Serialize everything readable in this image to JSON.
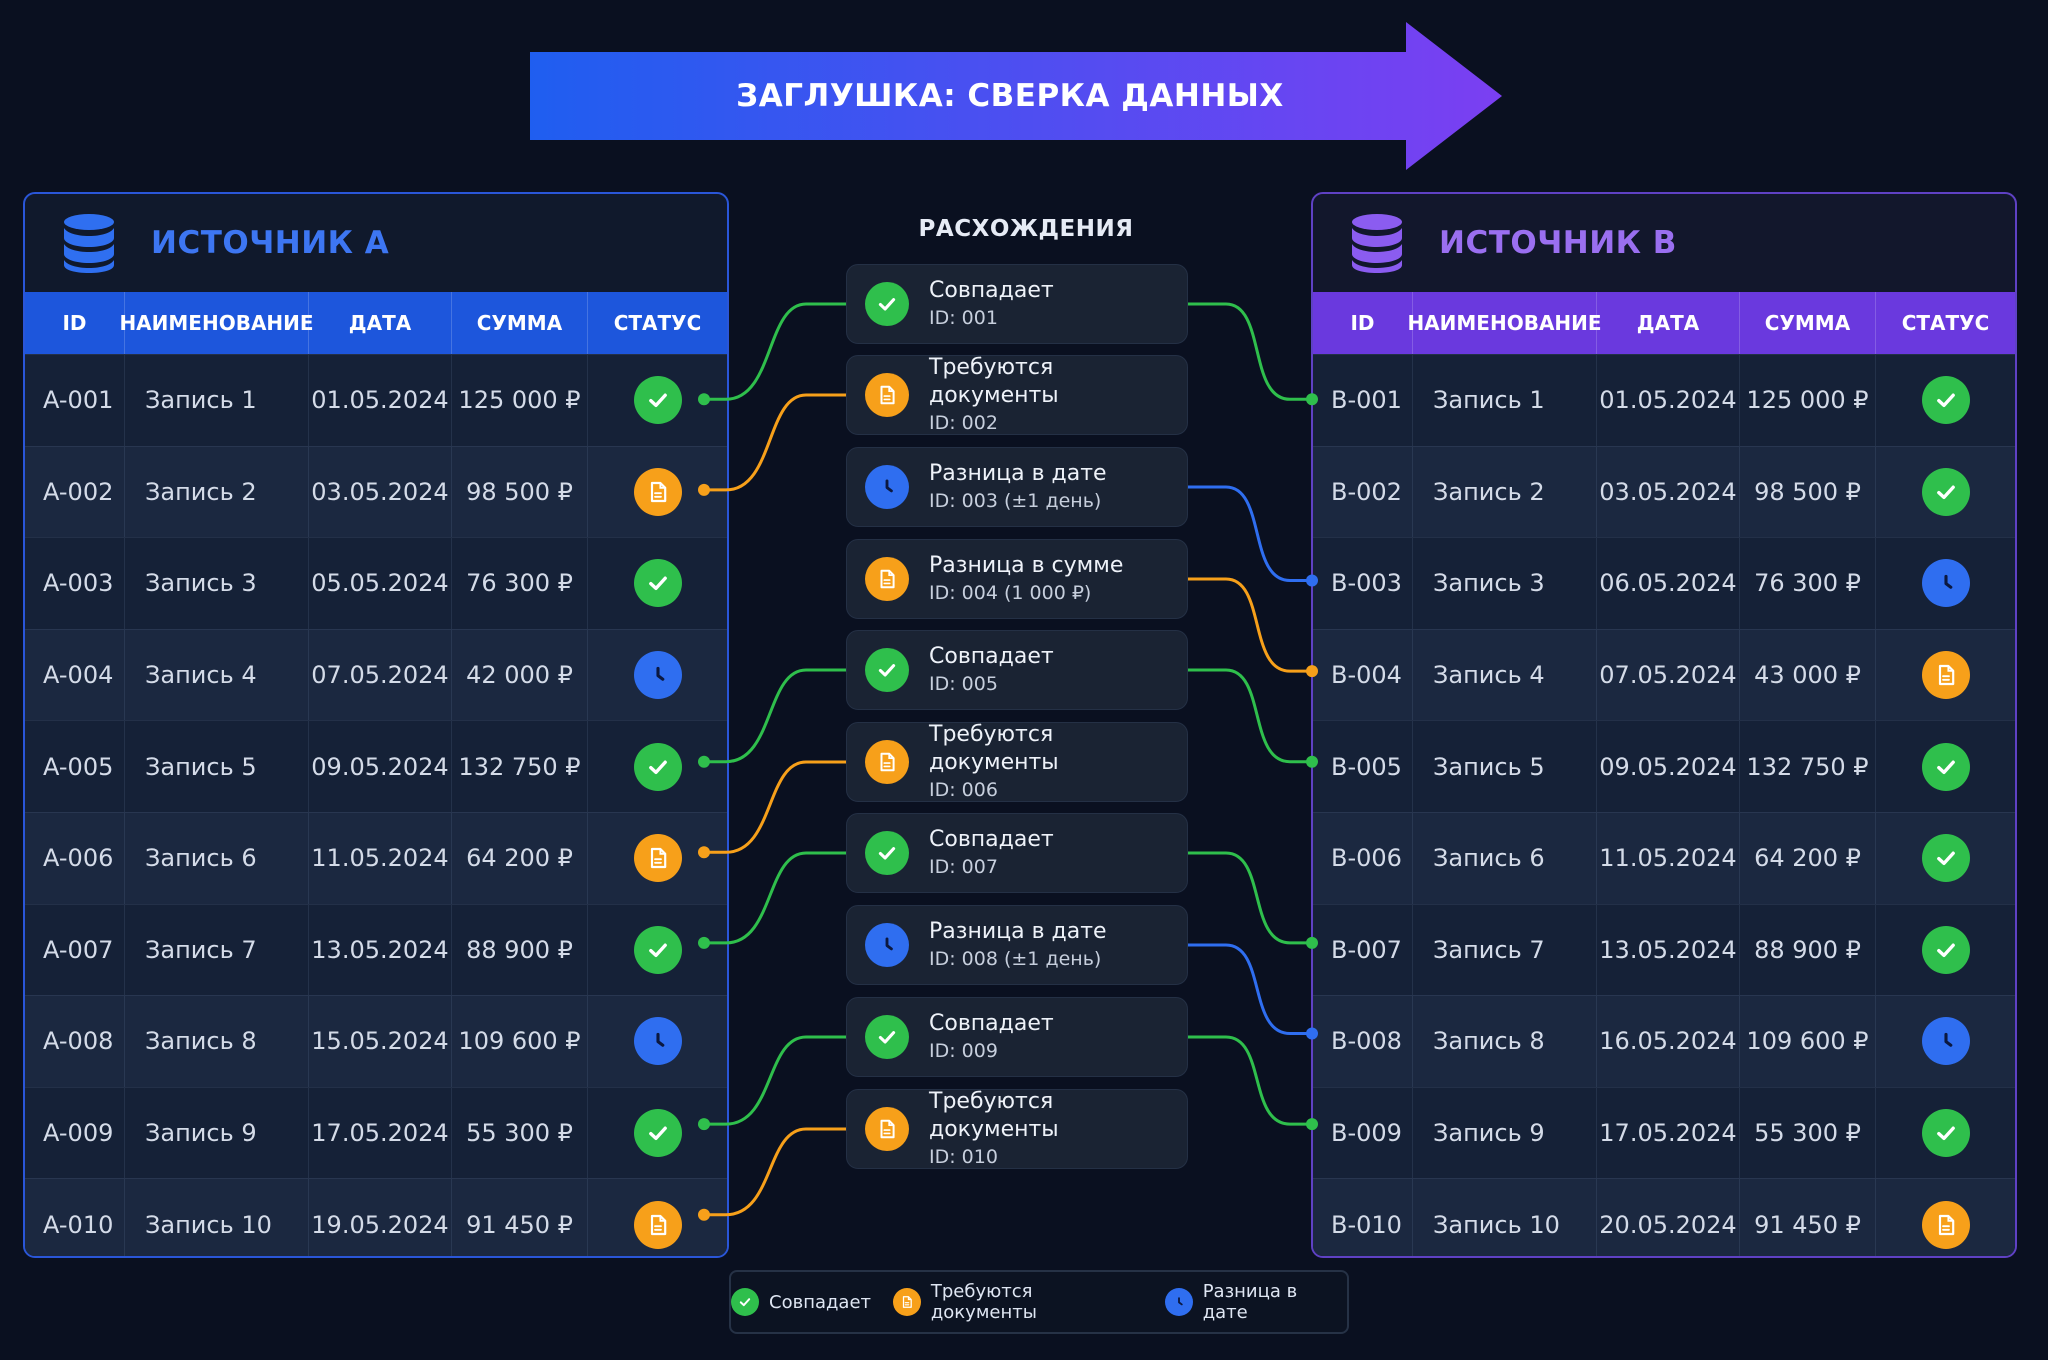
{
  "title": "ЗАГЛУШКА: СВЕРКА ДАННЫХ",
  "colors": {
    "match": "#2fbf4c",
    "docs": "#f7a01a",
    "date": "#2f6ef0",
    "source_a": "#2a56d8",
    "source_b": "#6a39de"
  },
  "icons": {
    "match": "check-icon",
    "docs": "document-icon",
    "date": "clock-icon",
    "database": "database-icon"
  },
  "source_a": {
    "title": "ИСТОЧНИК А",
    "columns": [
      "ID",
      "НАИМЕНОВАНИЕ",
      "ДАТА",
      "СУММА",
      "СТАТУС"
    ],
    "rows": [
      {
        "id": "A-001",
        "name": "Запись 1",
        "date": "01.05.2024",
        "sum": "125 000 ₽",
        "status": "match"
      },
      {
        "id": "A-002",
        "name": "Запись 2",
        "date": "03.05.2024",
        "sum": "98 500 ₽",
        "status": "docs"
      },
      {
        "id": "A-003",
        "name": "Запись 3",
        "date": "05.05.2024",
        "sum": "76 300 ₽",
        "status": "match"
      },
      {
        "id": "A-004",
        "name": "Запись 4",
        "date": "07.05.2024",
        "sum": "42 000 ₽",
        "status": "date"
      },
      {
        "id": "A-005",
        "name": "Запись 5",
        "date": "09.05.2024",
        "sum": "132 750 ₽",
        "status": "match"
      },
      {
        "id": "A-006",
        "name": "Запись 6",
        "date": "11.05.2024",
        "sum": "64 200 ₽",
        "status": "docs"
      },
      {
        "id": "A-007",
        "name": "Запись 7",
        "date": "13.05.2024",
        "sum": "88 900 ₽",
        "status": "match"
      },
      {
        "id": "A-008",
        "name": "Запись 8",
        "date": "15.05.2024",
        "sum": "109 600 ₽",
        "status": "date"
      },
      {
        "id": "A-009",
        "name": "Запись 9",
        "date": "17.05.2024",
        "sum": "55 300 ₽",
        "status": "match"
      },
      {
        "id": "A-010",
        "name": "Запись 10",
        "date": "19.05.2024",
        "sum": "91 450 ₽",
        "status": "docs"
      }
    ]
  },
  "source_b": {
    "title": "ИСТОЧНИК В",
    "columns": [
      "ID",
      "НАИМЕНОВАНИЕ",
      "ДАТА",
      "СУММА",
      "СТАТУС"
    ],
    "rows": [
      {
        "id": "B-001",
        "name": "Запись 1",
        "date": "01.05.2024",
        "sum": "125 000 ₽",
        "status": "match"
      },
      {
        "id": "B-002",
        "name": "Запись 2",
        "date": "03.05.2024",
        "sum": "98 500 ₽",
        "status": "match"
      },
      {
        "id": "B-003",
        "name": "Запись 3",
        "date": "06.05.2024",
        "sum": "76 300 ₽",
        "status": "date"
      },
      {
        "id": "B-004",
        "name": "Запись 4",
        "date": "07.05.2024",
        "sum": "43 000 ₽",
        "status": "docs"
      },
      {
        "id": "B-005",
        "name": "Запись 5",
        "date": "09.05.2024",
        "sum": "132 750 ₽",
        "status": "match"
      },
      {
        "id": "B-006",
        "name": "Запись 6",
        "date": "11.05.2024",
        "sum": "64 200 ₽",
        "status": "match"
      },
      {
        "id": "B-007",
        "name": "Запись 7",
        "date": "13.05.2024",
        "sum": "88 900 ₽",
        "status": "match"
      },
      {
        "id": "B-008",
        "name": "Запись 8",
        "date": "16.05.2024",
        "sum": "109 600 ₽",
        "status": "date"
      },
      {
        "id": "B-009",
        "name": "Запись 9",
        "date": "17.05.2024",
        "sum": "55 300 ₽",
        "status": "match"
      },
      {
        "id": "B-010",
        "name": "Запись 10",
        "date": "20.05.2024",
        "sum": "91 450 ₽",
        "status": "docs"
      }
    ]
  },
  "discrepancies": {
    "title": "РАСХОЖДЕНИЯ",
    "items": [
      {
        "label": "Совпадает",
        "sub": "ID: 001",
        "status": "match"
      },
      {
        "label": "Требуются документы",
        "sub": "ID: 002",
        "status": "docs"
      },
      {
        "label": "Разница в дате",
        "sub": "ID: 003 (±1 день)",
        "status": "date"
      },
      {
        "label": "Разница в сумме",
        "sub": "ID: 004 (1 000 ₽)",
        "status": "docs"
      },
      {
        "label": "Совпадает",
        "sub": "ID: 005",
        "status": "match"
      },
      {
        "label": "Требуются документы",
        "sub": "ID: 006",
        "status": "docs"
      },
      {
        "label": "Совпадает",
        "sub": "ID: 007",
        "status": "match"
      },
      {
        "label": "Разница в дате",
        "sub": "ID: 008 (±1 день)",
        "status": "date"
      },
      {
        "label": "Совпадает",
        "sub": "ID: 009",
        "status": "match"
      },
      {
        "label": "Требуются документы",
        "sub": "ID: 010",
        "status": "docs"
      }
    ],
    "links_left": [
      {
        "row": 0,
        "card": 0,
        "status": "match"
      },
      {
        "row": 1,
        "card": 1,
        "status": "docs"
      },
      {
        "row": 4,
        "card": 4,
        "status": "match"
      },
      {
        "row": 5,
        "card": 5,
        "status": "docs"
      },
      {
        "row": 6,
        "card": 6,
        "status": "match"
      },
      {
        "row": 8,
        "card": 8,
        "status": "match"
      },
      {
        "row": 9,
        "card": 9,
        "status": "docs"
      }
    ],
    "links_right": [
      {
        "card": 0,
        "row": 0,
        "status": "match"
      },
      {
        "card": 2,
        "row": 2,
        "status": "date"
      },
      {
        "card": 3,
        "row": 3,
        "status": "docs"
      },
      {
        "card": 4,
        "row": 4,
        "status": "match"
      },
      {
        "card": 6,
        "row": 6,
        "status": "match"
      },
      {
        "card": 7,
        "row": 7,
        "status": "date"
      },
      {
        "card": 8,
        "row": 8,
        "status": "match"
      }
    ]
  },
  "legend": [
    {
      "label": "Совпадает",
      "status": "match"
    },
    {
      "label": "Требуются документы",
      "status": "docs"
    },
    {
      "label": "Разница в дате",
      "status": "date"
    }
  ]
}
